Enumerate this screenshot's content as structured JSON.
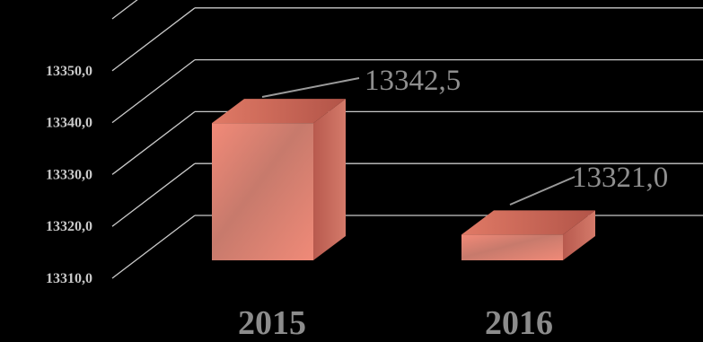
{
  "chart_data": {
    "type": "bar",
    "categories": [
      "2015",
      "2016"
    ],
    "values": [
      13342.5,
      13321.0
    ],
    "data_labels": [
      "13342,5",
      "13321,0"
    ],
    "y_ticks": [
      "13310,0",
      "13320,0",
      "13330,0",
      "13340,0",
      "13350,0"
    ],
    "ylim": [
      13310,
      13360
    ],
    "grid": true,
    "legend": "none",
    "style": "3d-column",
    "colors": {
      "bar_front": "#f08a78",
      "bar_side": "#c96a5c",
      "bar_top": "#d9705f",
      "grid": "#c8c8c8",
      "background": "#000000"
    }
  }
}
